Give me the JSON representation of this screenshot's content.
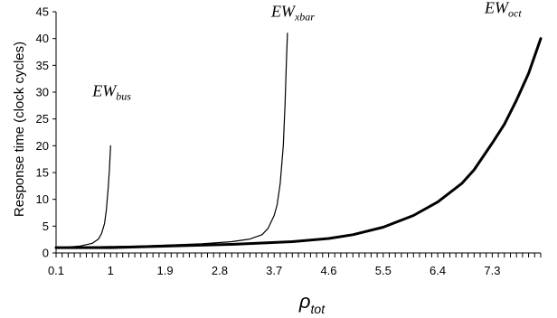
{
  "chart_data": {
    "type": "line",
    "ylabel": "Response time (clock cycles)",
    "xlabel": {
      "main": "ρ",
      "sub": "tot"
    },
    "xlim": [
      0.1,
      8.1
    ],
    "ylim": [
      0,
      45
    ],
    "x_tick_labels": [
      "0.1",
      "1",
      "1.9",
      "2.8",
      "3.7",
      "4.6",
      "5.5",
      "6.4",
      "7.3"
    ],
    "x_tick_values": [
      0.1,
      1.0,
      1.9,
      2.8,
      3.7,
      4.6,
      5.5,
      6.4,
      7.3
    ],
    "y_ticks": [
      0,
      5,
      10,
      15,
      20,
      25,
      30,
      35,
      40,
      45
    ],
    "grid": false,
    "legend": "none",
    "series": [
      {
        "name": {
          "main": "EW",
          "sub": "bus"
        },
        "stroke": "thin",
        "points": [
          [
            0.1,
            1.0
          ],
          [
            0.3,
            1.1
          ],
          [
            0.5,
            1.3
          ],
          [
            0.7,
            1.8
          ],
          [
            0.8,
            2.6
          ],
          [
            0.85,
            3.6
          ],
          [
            0.9,
            5.5
          ],
          [
            0.93,
            8.0
          ],
          [
            0.96,
            12.0
          ],
          [
            0.98,
            15.5
          ],
          [
            1.0,
            20.0
          ]
        ]
      },
      {
        "name": {
          "main": "EW",
          "sub": "xbar"
        },
        "stroke": "thin",
        "points": [
          [
            0.1,
            1.0
          ],
          [
            0.5,
            1.1
          ],
          [
            1.0,
            1.2
          ],
          [
            1.5,
            1.3
          ],
          [
            2.0,
            1.5
          ],
          [
            2.5,
            1.7
          ],
          [
            3.0,
            2.1
          ],
          [
            3.3,
            2.6
          ],
          [
            3.5,
            3.4
          ],
          [
            3.6,
            4.6
          ],
          [
            3.7,
            7.0
          ],
          [
            3.75,
            9.0
          ],
          [
            3.8,
            13.0
          ],
          [
            3.85,
            20.0
          ],
          [
            3.88,
            28.0
          ],
          [
            3.9,
            35.0
          ],
          [
            3.92,
            41.0
          ]
        ]
      },
      {
        "name": {
          "main": "EW",
          "sub": "oct"
        },
        "stroke": "thick",
        "points": [
          [
            0.1,
            1.0
          ],
          [
            1.0,
            1.0
          ],
          [
            2.0,
            1.3
          ],
          [
            3.0,
            1.6
          ],
          [
            4.0,
            2.1
          ],
          [
            4.6,
            2.7
          ],
          [
            5.0,
            3.4
          ],
          [
            5.5,
            4.8
          ],
          [
            6.0,
            7.0
          ],
          [
            6.4,
            9.5
          ],
          [
            6.8,
            13.0
          ],
          [
            7.0,
            15.5
          ],
          [
            7.3,
            20.5
          ],
          [
            7.5,
            24.0
          ],
          [
            7.7,
            28.5
          ],
          [
            7.9,
            33.5
          ],
          [
            8.1,
            40.0
          ]
        ]
      }
    ]
  }
}
